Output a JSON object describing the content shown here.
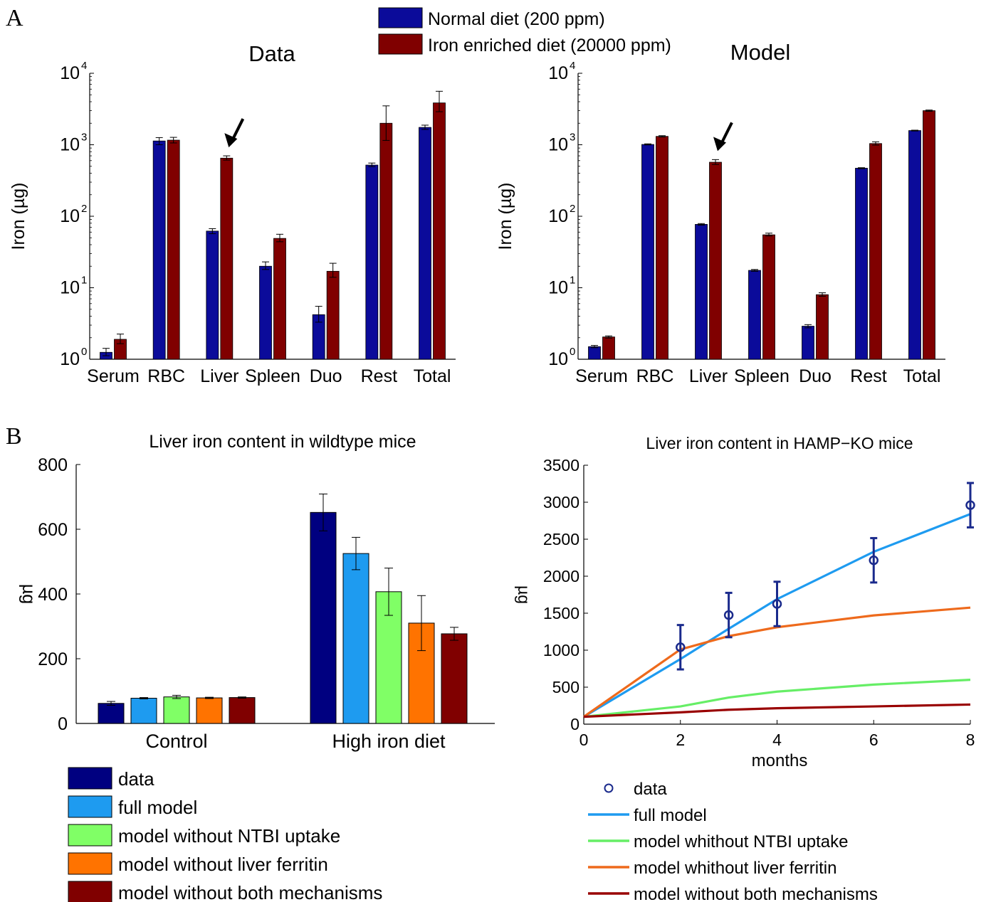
{
  "panel_labels": [
    "A",
    "B"
  ],
  "colors": {
    "normal": "#0b0b9a",
    "iron": "#800000",
    "data": "#000080",
    "full": "#1e9bf0",
    "ntbi": "#80ff66",
    "ferritin": "#ff7300",
    "both": "#800000",
    "line_full": "#1e9bf0",
    "line_ntbi": "#66ee66",
    "line_ferritin": "#ee6a1c",
    "line_both": "#990000",
    "marker": "#1a2a8c"
  },
  "legend_top": {
    "items": [
      {
        "label": "Normal diet (200 ppm)",
        "color_key": "normal"
      },
      {
        "label": "Iron enriched diet (20000 ppm)",
        "color_key": "iron"
      }
    ]
  },
  "chart_data": [
    {
      "id": "A-data",
      "type": "bar",
      "title": "Data",
      "ylabel": "Iron (µg)",
      "xlabel": "",
      "yscale": "log",
      "ylim": [
        1,
        10000
      ],
      "yticks": [
        1,
        10,
        100,
        1000,
        10000
      ],
      "ytick_labels": [
        [
          "10",
          "0"
        ],
        [
          "10",
          "1"
        ],
        [
          "10",
          "2"
        ],
        [
          "10",
          "3"
        ],
        [
          "10",
          "4"
        ]
      ],
      "categories": [
        "Serum",
        "RBC",
        "Liver",
        "Spleen",
        "Duo",
        "Rest",
        "Total"
      ],
      "series": [
        {
          "name": "Normal diet (200 ppm)",
          "color_key": "normal",
          "values": [
            1.25,
            1130,
            62,
            20,
            4.2,
            520,
            1750
          ],
          "err_low": [
            1.12,
            1000,
            57,
            18,
            3.3,
            495,
            1640
          ],
          "err_high": [
            1.42,
            1260,
            67,
            23,
            5.5,
            555,
            1880
          ]
        },
        {
          "name": "Iron enriched diet (20000 ppm)",
          "color_key": "iron",
          "values": [
            1.9,
            1160,
            650,
            49,
            17,
            2000,
            3850
          ],
          "err_low": [
            1.65,
            1060,
            610,
            44,
            14,
            1150,
            2900
          ],
          "err_high": [
            2.25,
            1270,
            700,
            56,
            22,
            3500,
            5600
          ]
        }
      ],
      "annotation": "arrow above Liver iron-enriched bar"
    },
    {
      "id": "A-model",
      "type": "bar",
      "title": "Model",
      "ylabel": "Iron (µg)",
      "xlabel": "",
      "yscale": "log",
      "ylim": [
        1,
        10000
      ],
      "yticks": [
        1,
        10,
        100,
        1000,
        10000
      ],
      "ytick_labels": [
        [
          "10",
          "0"
        ],
        [
          "10",
          "1"
        ],
        [
          "10",
          "2"
        ],
        [
          "10",
          "3"
        ],
        [
          "10",
          "4"
        ]
      ],
      "categories": [
        "Serum",
        "RBC",
        "Liver",
        "Spleen",
        "Duo",
        "Rest",
        "Total"
      ],
      "series": [
        {
          "name": "Normal diet (200 ppm)",
          "color_key": "normal",
          "values": [
            1.5,
            1010,
            77,
            17.5,
            2.9,
            470,
            1580
          ],
          "err_low": [
            1.45,
            995,
            75,
            17,
            2.75,
            462,
            1560
          ],
          "err_high": [
            1.56,
            1030,
            79,
            18,
            3.05,
            478,
            1600
          ]
        },
        {
          "name": "Iron enriched diet (20000 ppm)",
          "color_key": "iron",
          "values": [
            2.05,
            1310,
            570,
            55,
            8.0,
            1040,
            3000
          ],
          "err_low": [
            1.98,
            1285,
            530,
            53,
            7.6,
            990,
            2940
          ],
          "err_high": [
            2.12,
            1340,
            620,
            58,
            8.5,
            1100,
            3060
          ]
        }
      ],
      "annotation": "arrow above Liver iron-enriched bar"
    },
    {
      "id": "B-wildtype",
      "type": "bar",
      "title": "Liver iron content in wildtype mice",
      "ylabel": "µg",
      "xlabel": "",
      "ylim": [
        0,
        800
      ],
      "yticks": [
        0,
        200,
        400,
        600,
        800
      ],
      "categories": [
        "Control",
        "High iron diet"
      ],
      "series": [
        {
          "name": "data",
          "color_key": "data",
          "values": [
            62,
            652
          ],
          "err": [
            6,
            57
          ]
        },
        {
          "name": "full model",
          "color_key": "full",
          "values": [
            78,
            525
          ],
          "err": [
            2,
            50
          ]
        },
        {
          "name": "model without NTBI uptake",
          "color_key": "ntbi",
          "values": [
            82,
            407
          ],
          "err": [
            5,
            73
          ]
        },
        {
          "name": "model without liver ferritin",
          "color_key": "ferritin",
          "values": [
            79,
            310
          ],
          "err": [
            2,
            85
          ]
        },
        {
          "name": "model without both mechanisms",
          "color_key": "both",
          "values": [
            80,
            277
          ],
          "err": [
            2,
            20
          ]
        }
      ]
    },
    {
      "id": "B-hampko",
      "type": "line",
      "title": "Liver iron content in HAMP−KO mice",
      "ylabel": "µg",
      "xlabel": "months",
      "xlim": [
        0,
        8
      ],
      "ylim": [
        0,
        3500
      ],
      "xticks": [
        0,
        2,
        4,
        6,
        8
      ],
      "yticks": [
        0,
        500,
        1000,
        1500,
        2000,
        2500,
        3000,
        3500
      ],
      "series": [
        {
          "name": "data",
          "kind": "scatter",
          "color_key": "marker",
          "x": [
            2,
            3,
            4,
            6,
            8
          ],
          "y": [
            1040,
            1475,
            1625,
            2215,
            2960
          ],
          "err": [
            300,
            300,
            300,
            300,
            300
          ]
        },
        {
          "name": "full model",
          "kind": "line",
          "color_key": "line_full",
          "x": [
            0,
            2,
            3,
            4,
            6,
            8
          ],
          "y": [
            100,
            880,
            1290,
            1690,
            2330,
            2840
          ]
        },
        {
          "name": "model whithout NTBI uptake",
          "kind": "line",
          "color_key": "line_ntbi",
          "x": [
            0,
            2,
            3,
            4,
            6,
            8
          ],
          "y": [
            100,
            240,
            360,
            440,
            535,
            600
          ]
        },
        {
          "name": "model whithout liver ferritin",
          "kind": "line",
          "color_key": "line_ferritin",
          "x": [
            0,
            2,
            3,
            4,
            6,
            8
          ],
          "y": [
            100,
            1010,
            1190,
            1310,
            1470,
            1575
          ]
        },
        {
          "name": "model without both mechanisms",
          "kind": "line",
          "color_key": "line_both",
          "x": [
            0,
            2,
            3,
            4,
            6,
            8
          ],
          "y": [
            100,
            160,
            195,
            215,
            240,
            265
          ]
        }
      ]
    }
  ],
  "legend_b_left": {
    "items": [
      {
        "label": "data",
        "color_key": "data"
      },
      {
        "label": "full model",
        "color_key": "full"
      },
      {
        "label": "model without NTBI uptake",
        "color_key": "ntbi"
      },
      {
        "label": "model without liver ferritin",
        "color_key": "ferritin"
      },
      {
        "label": "model without both mechanisms",
        "color_key": "both"
      }
    ]
  },
  "legend_b_right": {
    "items": [
      {
        "label": "data",
        "kind": "marker",
        "color_key": "marker"
      },
      {
        "label": "full model",
        "kind": "line",
        "color_key": "line_full"
      },
      {
        "label": "model whithout NTBI uptake",
        "kind": "line",
        "color_key": "line_ntbi"
      },
      {
        "label": "model whithout liver ferritin",
        "kind": "line",
        "color_key": "line_ferritin"
      },
      {
        "label": "model without both mechanisms",
        "kind": "line",
        "color_key": "line_both"
      }
    ]
  }
}
